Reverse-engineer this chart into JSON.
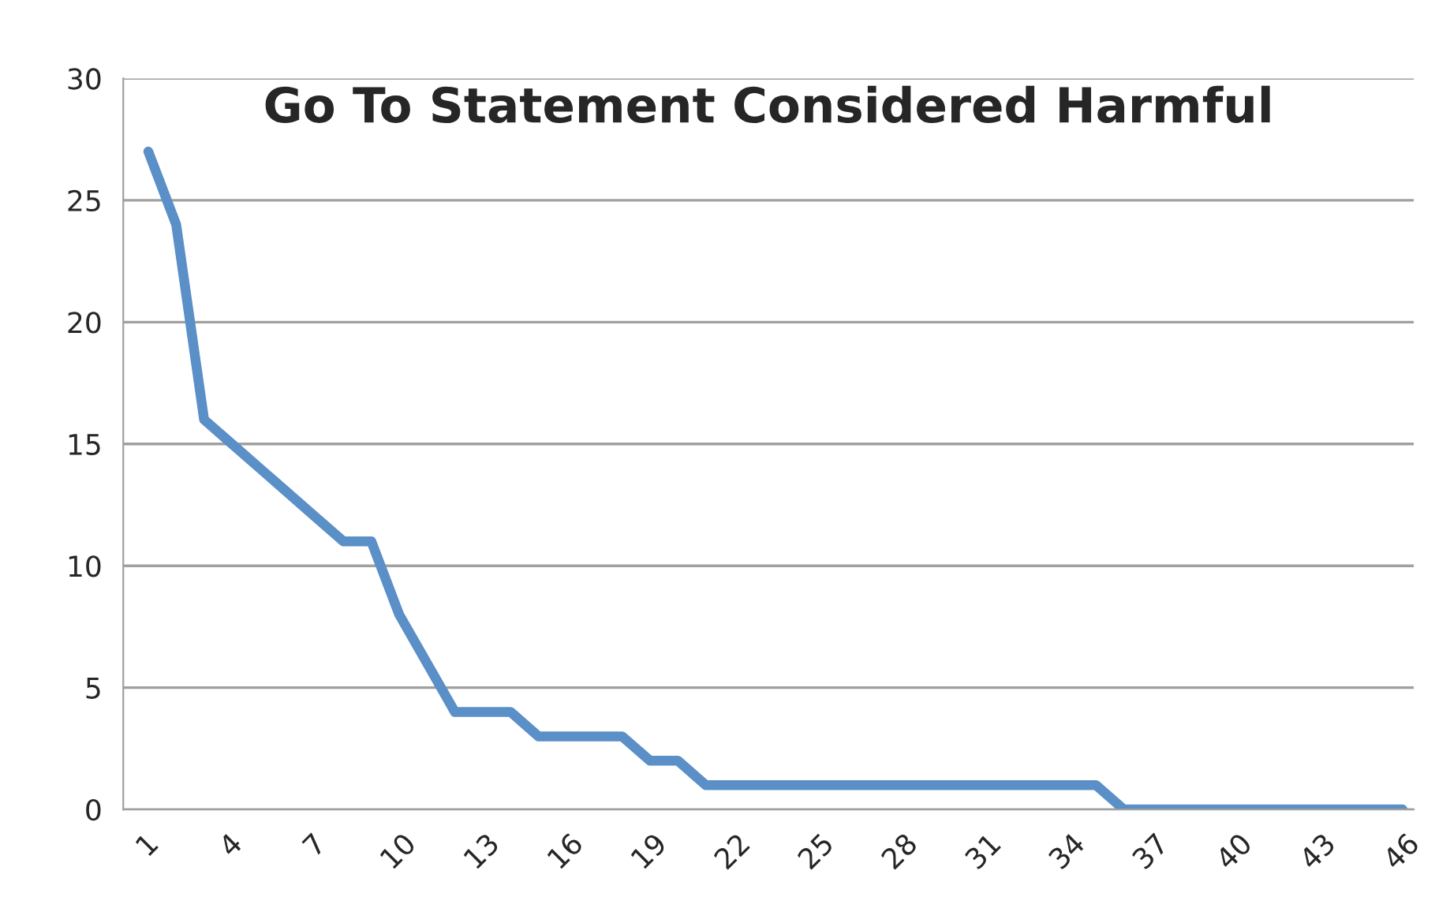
{
  "chart_data": {
    "type": "line",
    "title": "Go To Statement Considered Harmful",
    "categories": [
      "1",
      null,
      null,
      "4",
      null,
      null,
      "7",
      null,
      null,
      "10",
      null,
      null,
      "13",
      null,
      null,
      "16",
      null,
      null,
      "19",
      null,
      null,
      "22",
      null,
      null,
      "25",
      null,
      null,
      "28",
      null,
      null,
      "31",
      null,
      null,
      "34",
      null,
      null,
      "37",
      null,
      null,
      "40",
      null,
      null,
      "43",
      null,
      null,
      "46"
    ],
    "series": [
      {
        "color": "#5b8fc7",
        "values": [
          27,
          24,
          16,
          15,
          14,
          13,
          12,
          11,
          11,
          8,
          6,
          4,
          4,
          4,
          3,
          3,
          3,
          3,
          2,
          2,
          1,
          1,
          1,
          1,
          1,
          1,
          1,
          1,
          1,
          1,
          1,
          1,
          1,
          1,
          1,
          0,
          0,
          0,
          0,
          0,
          0,
          0,
          0,
          0,
          0,
          0
        ]
      }
    ],
    "ylim": [
      0,
      30
    ],
    "yticks": [
      0,
      5,
      10,
      15,
      20,
      25,
      30
    ],
    "grid": "y",
    "marker": "none",
    "line_style": "solid"
  }
}
